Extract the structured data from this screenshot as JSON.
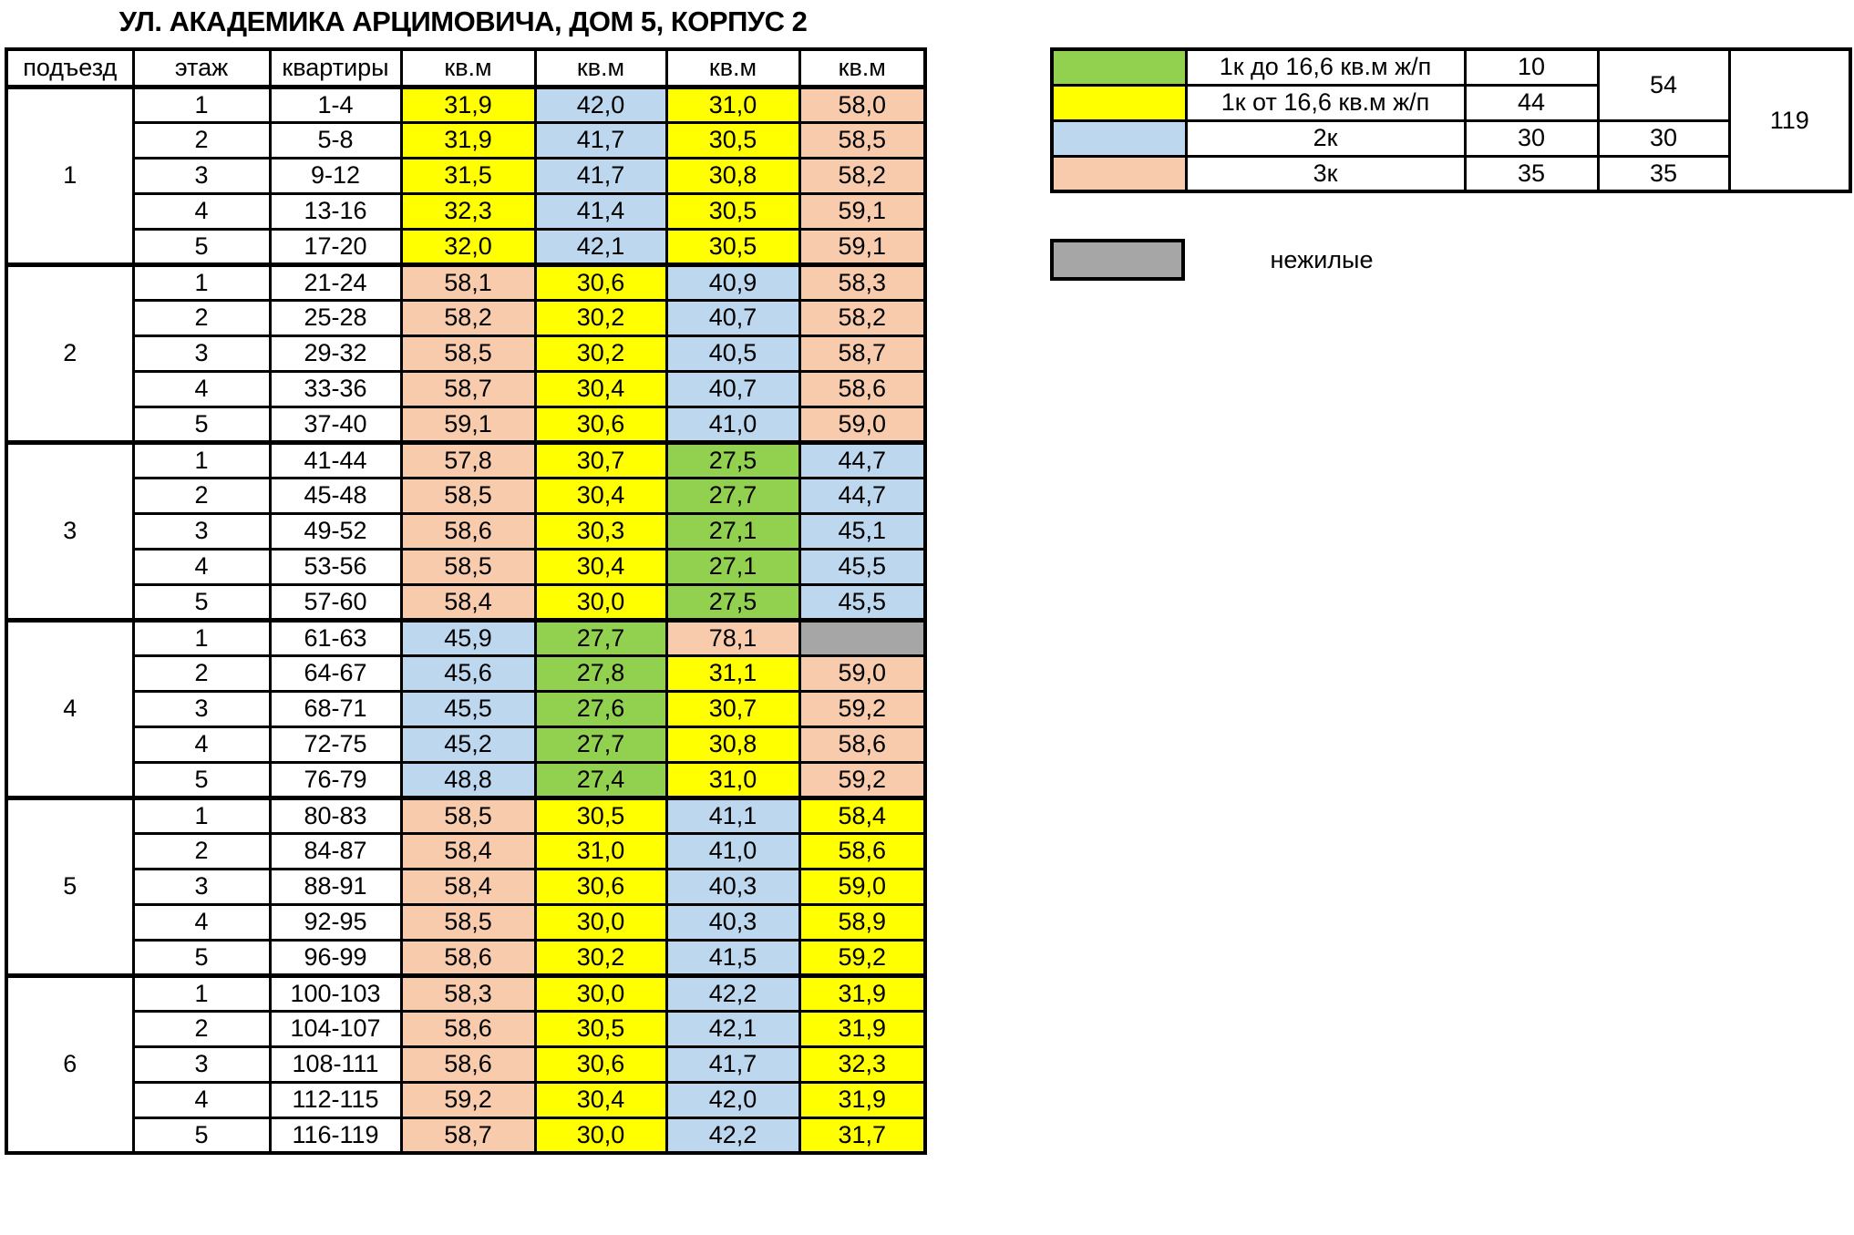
{
  "title": "УЛ. АКАДЕМИКА АРЦИМОВИЧА, ДОМ 5, КОРПУС 2",
  "colors": {
    "green": "#92D050",
    "yellow": "#FFFF00",
    "blue": "#BDD7EE",
    "peach": "#F8CBAD",
    "gray": "#A6A6A6",
    "white": "#FFFFFF",
    "border": "#000000"
  },
  "main_table": {
    "headers": [
      "подъезд",
      "этаж",
      "квартиры",
      "кв.м",
      "кв.м",
      "кв.м",
      "кв.м"
    ],
    "sections": [
      {
        "entrance": "1",
        "rows": [
          {
            "floor": "1",
            "apartments": "1-4",
            "areas": [
              {
                "v": "31,9",
                "c": "yellow"
              },
              {
                "v": "42,0",
                "c": "blue"
              },
              {
                "v": "31,0",
                "c": "yellow"
              },
              {
                "v": "58,0",
                "c": "peach"
              }
            ]
          },
          {
            "floor": "2",
            "apartments": "5-8",
            "areas": [
              {
                "v": "31,9",
                "c": "yellow"
              },
              {
                "v": "41,7",
                "c": "blue"
              },
              {
                "v": "30,5",
                "c": "yellow"
              },
              {
                "v": "58,5",
                "c": "peach"
              }
            ]
          },
          {
            "floor": "3",
            "apartments": "9-12",
            "areas": [
              {
                "v": "31,5",
                "c": "yellow"
              },
              {
                "v": "41,7",
                "c": "blue"
              },
              {
                "v": "30,8",
                "c": "yellow"
              },
              {
                "v": "58,2",
                "c": "peach"
              }
            ]
          },
          {
            "floor": "4",
            "apartments": "13-16",
            "areas": [
              {
                "v": "32,3",
                "c": "yellow"
              },
              {
                "v": "41,4",
                "c": "blue"
              },
              {
                "v": "30,5",
                "c": "yellow"
              },
              {
                "v": "59,1",
                "c": "peach"
              }
            ]
          },
          {
            "floor": "5",
            "apartments": "17-20",
            "areas": [
              {
                "v": "32,0",
                "c": "yellow"
              },
              {
                "v": "42,1",
                "c": "blue"
              },
              {
                "v": "30,5",
                "c": "yellow"
              },
              {
                "v": "59,1",
                "c": "peach"
              }
            ]
          }
        ]
      },
      {
        "entrance": "2",
        "rows": [
          {
            "floor": "1",
            "apartments": "21-24",
            "areas": [
              {
                "v": "58,1",
                "c": "peach"
              },
              {
                "v": "30,6",
                "c": "yellow"
              },
              {
                "v": "40,9",
                "c": "blue"
              },
              {
                "v": "58,3",
                "c": "peach"
              }
            ]
          },
          {
            "floor": "2",
            "apartments": "25-28",
            "areas": [
              {
                "v": "58,2",
                "c": "peach"
              },
              {
                "v": "30,2",
                "c": "yellow"
              },
              {
                "v": "40,7",
                "c": "blue"
              },
              {
                "v": "58,2",
                "c": "peach"
              }
            ]
          },
          {
            "floor": "3",
            "apartments": "29-32",
            "areas": [
              {
                "v": "58,5",
                "c": "peach"
              },
              {
                "v": "30,2",
                "c": "yellow"
              },
              {
                "v": "40,5",
                "c": "blue"
              },
              {
                "v": "58,7",
                "c": "peach"
              }
            ]
          },
          {
            "floor": "4",
            "apartments": "33-36",
            "areas": [
              {
                "v": "58,7",
                "c": "peach"
              },
              {
                "v": "30,4",
                "c": "yellow"
              },
              {
                "v": "40,7",
                "c": "blue"
              },
              {
                "v": "58,6",
                "c": "peach"
              }
            ]
          },
          {
            "floor": "5",
            "apartments": "37-40",
            "areas": [
              {
                "v": "59,1",
                "c": "peach"
              },
              {
                "v": "30,6",
                "c": "yellow"
              },
              {
                "v": "41,0",
                "c": "blue"
              },
              {
                "v": "59,0",
                "c": "peach"
              }
            ]
          }
        ]
      },
      {
        "entrance": "3",
        "rows": [
          {
            "floor": "1",
            "apartments": "41-44",
            "areas": [
              {
                "v": "57,8",
                "c": "peach"
              },
              {
                "v": "30,7",
                "c": "yellow"
              },
              {
                "v": "27,5",
                "c": "green"
              },
              {
                "v": "44,7",
                "c": "blue"
              }
            ]
          },
          {
            "floor": "2",
            "apartments": "45-48",
            "areas": [
              {
                "v": "58,5",
                "c": "peach"
              },
              {
                "v": "30,4",
                "c": "yellow"
              },
              {
                "v": "27,7",
                "c": "green"
              },
              {
                "v": "44,7",
                "c": "blue"
              }
            ]
          },
          {
            "floor": "3",
            "apartments": "49-52",
            "areas": [
              {
                "v": "58,6",
                "c": "peach"
              },
              {
                "v": "30,3",
                "c": "yellow"
              },
              {
                "v": "27,1",
                "c": "green"
              },
              {
                "v": "45,1",
                "c": "blue"
              }
            ]
          },
          {
            "floor": "4",
            "apartments": "53-56",
            "areas": [
              {
                "v": "58,5",
                "c": "peach"
              },
              {
                "v": "30,4",
                "c": "yellow"
              },
              {
                "v": "27,1",
                "c": "green"
              },
              {
                "v": "45,5",
                "c": "blue"
              }
            ]
          },
          {
            "floor": "5",
            "apartments": "57-60",
            "areas": [
              {
                "v": "58,4",
                "c": "peach"
              },
              {
                "v": "30,0",
                "c": "yellow"
              },
              {
                "v": "27,5",
                "c": "green"
              },
              {
                "v": "45,5",
                "c": "blue"
              }
            ]
          }
        ]
      },
      {
        "entrance": "4",
        "rows": [
          {
            "floor": "1",
            "apartments": "61-63",
            "areas": [
              {
                "v": "45,9",
                "c": "blue"
              },
              {
                "v": "27,7",
                "c": "green"
              },
              {
                "v": "78,1",
                "c": "peach"
              },
              {
                "v": "",
                "c": "gray"
              }
            ]
          },
          {
            "floor": "2",
            "apartments": "64-67",
            "areas": [
              {
                "v": "45,6",
                "c": "blue"
              },
              {
                "v": "27,8",
                "c": "green"
              },
              {
                "v": "31,1",
                "c": "yellow"
              },
              {
                "v": "59,0",
                "c": "peach"
              }
            ]
          },
          {
            "floor": "3",
            "apartments": "68-71",
            "areas": [
              {
                "v": "45,5",
                "c": "blue"
              },
              {
                "v": "27,6",
                "c": "green"
              },
              {
                "v": "30,7",
                "c": "yellow"
              },
              {
                "v": "59,2",
                "c": "peach"
              }
            ]
          },
          {
            "floor": "4",
            "apartments": "72-75",
            "areas": [
              {
                "v": "45,2",
                "c": "blue"
              },
              {
                "v": "27,7",
                "c": "green"
              },
              {
                "v": "30,8",
                "c": "yellow"
              },
              {
                "v": "58,6",
                "c": "peach"
              }
            ]
          },
          {
            "floor": "5",
            "apartments": "76-79",
            "areas": [
              {
                "v": "48,8",
                "c": "blue"
              },
              {
                "v": "27,4",
                "c": "green"
              },
              {
                "v": "31,0",
                "c": "yellow"
              },
              {
                "v": "59,2",
                "c": "peach"
              }
            ]
          }
        ]
      },
      {
        "entrance": "5",
        "rows": [
          {
            "floor": "1",
            "apartments": "80-83",
            "areas": [
              {
                "v": "58,5",
                "c": "peach"
              },
              {
                "v": "30,5",
                "c": "yellow"
              },
              {
                "v": "41,1",
                "c": "blue"
              },
              {
                "v": "58,4",
                "c": "yellow"
              }
            ]
          },
          {
            "floor": "2",
            "apartments": "84-87",
            "areas": [
              {
                "v": "58,4",
                "c": "peach"
              },
              {
                "v": "31,0",
                "c": "yellow"
              },
              {
                "v": "41,0",
                "c": "blue"
              },
              {
                "v": "58,6",
                "c": "yellow"
              }
            ]
          },
          {
            "floor": "3",
            "apartments": "88-91",
            "areas": [
              {
                "v": "58,4",
                "c": "peach"
              },
              {
                "v": "30,6",
                "c": "yellow"
              },
              {
                "v": "40,3",
                "c": "blue"
              },
              {
                "v": "59,0",
                "c": "yellow"
              }
            ]
          },
          {
            "floor": "4",
            "apartments": "92-95",
            "areas": [
              {
                "v": "58,5",
                "c": "peach"
              },
              {
                "v": "30,0",
                "c": "yellow"
              },
              {
                "v": "40,3",
                "c": "blue"
              },
              {
                "v": "58,9",
                "c": "yellow"
              }
            ]
          },
          {
            "floor": "5",
            "apartments": "96-99",
            "areas": [
              {
                "v": "58,6",
                "c": "peach"
              },
              {
                "v": "30,2",
                "c": "yellow"
              },
              {
                "v": "41,5",
                "c": "blue"
              },
              {
                "v": "59,2",
                "c": "yellow"
              }
            ]
          }
        ]
      },
      {
        "entrance": "6",
        "rows": [
          {
            "floor": "1",
            "apartments": "100-103",
            "areas": [
              {
                "v": "58,3",
                "c": "peach"
              },
              {
                "v": "30,0",
                "c": "yellow"
              },
              {
                "v": "42,2",
                "c": "blue"
              },
              {
                "v": "31,9",
                "c": "yellow"
              }
            ]
          },
          {
            "floor": "2",
            "apartments": "104-107",
            "areas": [
              {
                "v": "58,6",
                "c": "peach"
              },
              {
                "v": "30,5",
                "c": "yellow"
              },
              {
                "v": "42,1",
                "c": "blue"
              },
              {
                "v": "31,9",
                "c": "yellow"
              }
            ]
          },
          {
            "floor": "3",
            "apartments": "108-111",
            "areas": [
              {
                "v": "58,6",
                "c": "peach"
              },
              {
                "v": "30,6",
                "c": "yellow"
              },
              {
                "v": "41,7",
                "c": "blue"
              },
              {
                "v": "32,3",
                "c": "yellow"
              }
            ]
          },
          {
            "floor": "4",
            "apartments": "112-115",
            "areas": [
              {
                "v": "59,2",
                "c": "peach"
              },
              {
                "v": "30,4",
                "c": "yellow"
              },
              {
                "v": "42,0",
                "c": "blue"
              },
              {
                "v": "31,9",
                "c": "yellow"
              }
            ]
          },
          {
            "floor": "5",
            "apartments": "116-119",
            "areas": [
              {
                "v": "58,7",
                "c": "peach"
              },
              {
                "v": "30,0",
                "c": "yellow"
              },
              {
                "v": "42,2",
                "c": "blue"
              },
              {
                "v": "31,7",
                "c": "yellow"
              }
            ]
          }
        ]
      }
    ]
  },
  "legend": {
    "rows": [
      {
        "color": "green",
        "label": "1к до 16,6 кв.м ж/п",
        "count": "10"
      },
      {
        "color": "yellow",
        "label": "1к от 16,6 кв.м ж/п",
        "count": "44"
      },
      {
        "color": "blue",
        "label": "2к",
        "count": "30",
        "subtotal": "30"
      },
      {
        "color": "peach",
        "label": "3к",
        "count": "35",
        "subtotal": "35"
      }
    ],
    "subtotal_1k": "54",
    "total": "119"
  },
  "nonresidential": {
    "label": "нежилые",
    "color": "gray"
  }
}
